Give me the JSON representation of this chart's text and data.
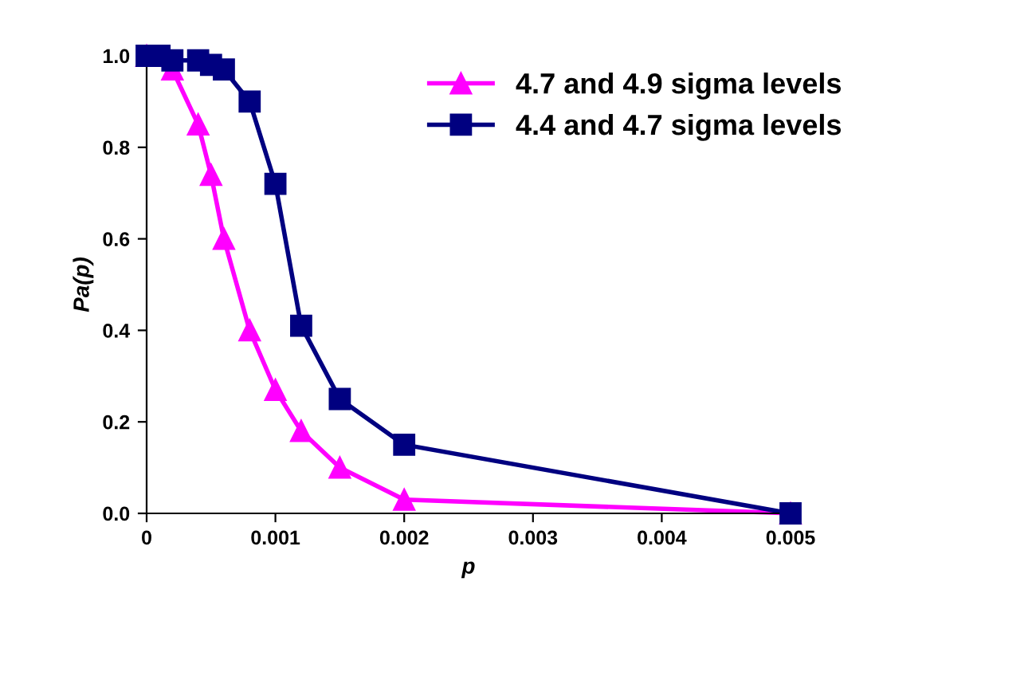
{
  "chart_data": {
    "type": "line",
    "xlabel": "p",
    "ylabel": "Pa(p)",
    "series": [
      {
        "name": "4.7 and 4.9 sigma levels",
        "color": "#ff00ff",
        "marker": "triangle",
        "x": [
          0,
          0.0002,
          0.0004,
          0.0005,
          0.0006,
          0.0008,
          0.001,
          0.0012,
          0.0015,
          0.002,
          0.005
        ],
        "values": [
          1.0,
          0.97,
          0.85,
          0.74,
          0.6,
          0.4,
          0.27,
          0.18,
          0.1,
          0.03,
          0.0
        ]
      },
      {
        "name": "4.4 and 4.7 sigma levels",
        "color": "#000080",
        "marker": "square",
        "x": [
          0,
          0.0001,
          0.0002,
          0.0004,
          0.0005,
          0.0006,
          0.0008,
          0.001,
          0.0012,
          0.0015,
          0.002,
          0.005
        ],
        "values": [
          1.0,
          1.0,
          0.99,
          0.99,
          0.98,
          0.97,
          0.9,
          0.72,
          0.41,
          0.25,
          0.15,
          0.0
        ]
      }
    ],
    "xlim": [
      0,
      0.005
    ],
    "xticks": [
      0,
      0.001,
      0.002,
      0.003,
      0.004,
      0.005
    ],
    "ylim": [
      0,
      1.0
    ],
    "yticks": [
      {
        "value": 0,
        "label": "0.0"
      },
      0.2,
      0.4,
      0.6,
      0.8,
      {
        "value": 1.0,
        "label": "1.0"
      }
    ],
    "legend": "top right",
    "grid": false
  }
}
